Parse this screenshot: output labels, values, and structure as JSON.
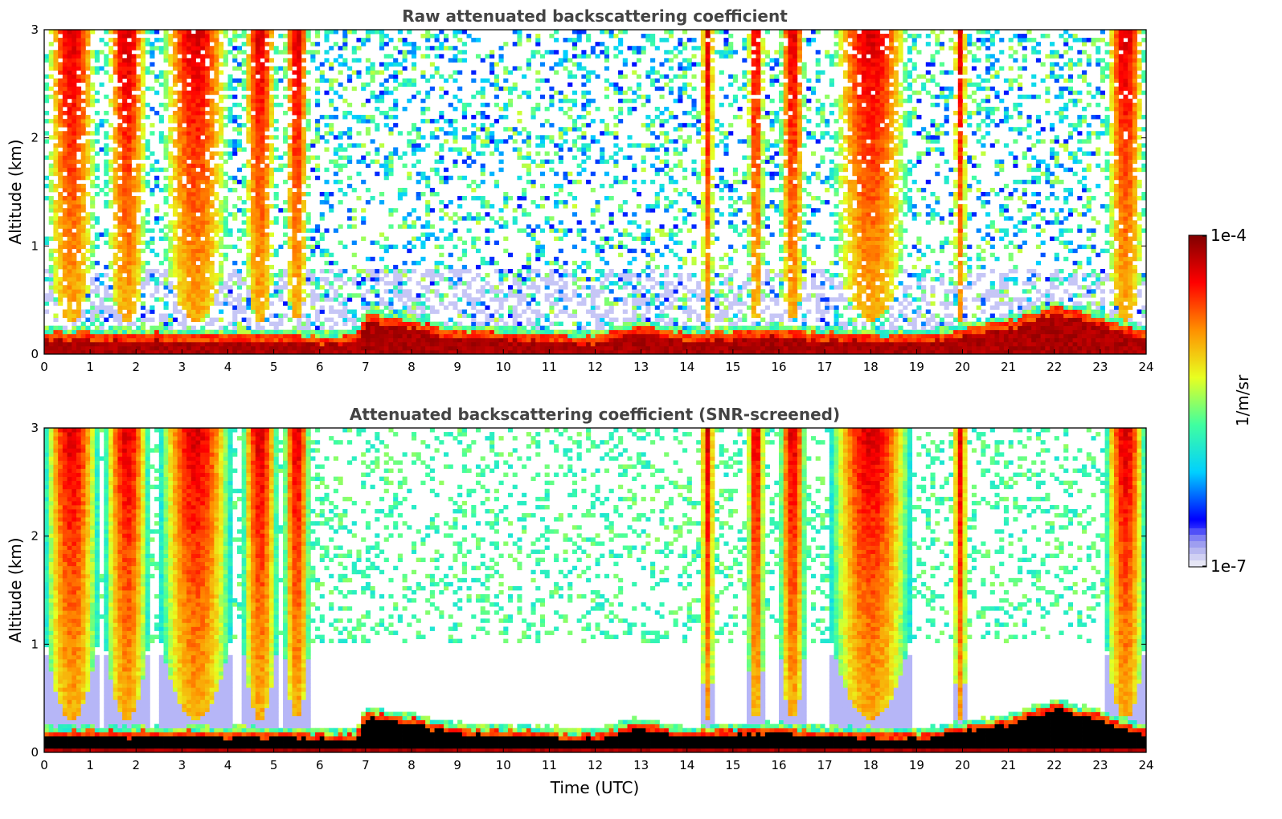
{
  "chart_data": [
    {
      "type": "heatmap",
      "title": "Raw attenuated backscattering coefficient",
      "xlabel": "",
      "ylabel": "Altitude (km)",
      "xlim": [
        0,
        24
      ],
      "ylim": [
        0,
        3
      ],
      "xticks": [
        "0",
        "1",
        "2",
        "3",
        "4",
        "5",
        "6",
        "7",
        "8",
        "9",
        "10",
        "11",
        "12",
        "13",
        "14",
        "15",
        "16",
        "17",
        "18",
        "19",
        "20",
        "21",
        "22",
        "23",
        "24"
      ],
      "yticks": [
        "0",
        "1",
        "2",
        "3"
      ],
      "screened": false
    },
    {
      "type": "heatmap",
      "title": "Attenuated backscattering coefficient (SNR-screened)",
      "xlabel": "Time (UTC)",
      "ylabel": "Altitude (km)",
      "xlim": [
        0,
        24
      ],
      "ylim": [
        0,
        3
      ],
      "xticks": [
        "0",
        "1",
        "2",
        "3",
        "4",
        "5",
        "6",
        "7",
        "8",
        "9",
        "10",
        "11",
        "12",
        "13",
        "14",
        "15",
        "16",
        "17",
        "18",
        "19",
        "20",
        "21",
        "22",
        "23",
        "24"
      ],
      "yticks": [
        "0",
        "1",
        "2",
        "3"
      ],
      "screened": true
    }
  ],
  "colorbar": {
    "label": "1/m/sr",
    "max_label": "1e-4",
    "min_label": "1e-7",
    "scale": "log",
    "colormap": "jet",
    "stops": [
      "#e6e6f5",
      "#0000ff",
      "#00d0ff",
      "#40ffa0",
      "#e8ff20",
      "#ff9000",
      "#ff0000",
      "#800000"
    ]
  },
  "layers": {
    "boundary_layer_top_km": [
      [
        0,
        0.25
      ],
      [
        4,
        0.24
      ],
      [
        6.8,
        0.22
      ],
      [
        7,
        0.42
      ],
      [
        7.8,
        0.38
      ],
      [
        9,
        0.27
      ],
      [
        12,
        0.22
      ],
      [
        13,
        0.32
      ],
      [
        14,
        0.24
      ],
      [
        16,
        0.28
      ],
      [
        17,
        0.25
      ],
      [
        19,
        0.22
      ],
      [
        21,
        0.35
      ],
      [
        22,
        0.5
      ],
      [
        23,
        0.4
      ],
      [
        24,
        0.25
      ]
    ],
    "plume_periods_utc": [
      [
        0,
        1.2
      ],
      [
        1.3,
        2.3
      ],
      [
        2.5,
        4.1
      ],
      [
        4.3,
        5.1
      ],
      [
        5.2,
        5.8
      ],
      [
        14.3,
        14.6
      ],
      [
        15.3,
        15.7
      ],
      [
        16.0,
        16.6
      ],
      [
        17.1,
        18.9
      ],
      [
        19.8,
        20.1
      ],
      [
        23.1,
        24
      ]
    ]
  }
}
